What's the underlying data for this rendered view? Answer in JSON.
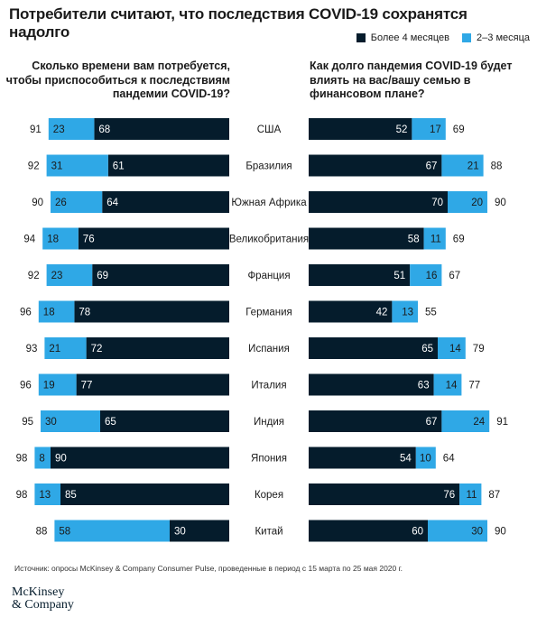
{
  "title": "Потребители считают, что последствия COVID-19 сохранятся надолго",
  "legend": [
    {
      "label": "Более 4 месяцев",
      "color": "#051c2c"
    },
    {
      "label": "2–3 месяца",
      "color": "#2fa8e6"
    }
  ],
  "questions": {
    "left": "Сколько времени вам потребуется, чтобы приспособиться к последствиям пандемии COVID-19?",
    "right": "Как долго пандемия COVID-19 будет влиять на вас/вашу семью в финансовом плане?"
  },
  "source": "Источник: опросы McKinsey & Company Consumer Pulse, проведенные в период с 15 марта по 25 мая 2020 г.",
  "logo": [
    "McKinsey",
    "& Company"
  ],
  "chart_data": [
    {
      "type": "bar",
      "stacked": true,
      "orientation": "horizontal",
      "side": "left",
      "categories": [
        "США",
        "Бразилия",
        "Южная Африка",
        "Великобритания",
        "Франция",
        "Германия",
        "Испания",
        "Италия",
        "Индия",
        "Япония",
        "Корея",
        "Китай"
      ],
      "series": [
        {
          "name": "Более 4 месяцев",
          "values": [
            68,
            61,
            64,
            76,
            69,
            78,
            72,
            77,
            65,
            90,
            85,
            30
          ]
        },
        {
          "name": "2–3 месяца",
          "values": [
            23,
            31,
            26,
            18,
            23,
            18,
            21,
            19,
            30,
            8,
            13,
            58
          ]
        }
      ],
      "totals": [
        91,
        92,
        90,
        94,
        92,
        96,
        93,
        96,
        95,
        98,
        98,
        88
      ]
    },
    {
      "type": "bar",
      "stacked": true,
      "orientation": "horizontal",
      "side": "right",
      "categories": [
        "США",
        "Бразилия",
        "Южная Африка",
        "Великобритания",
        "Франция",
        "Германия",
        "Испания",
        "Италия",
        "Индия",
        "Япония",
        "Корея",
        "Китай"
      ],
      "series": [
        {
          "name": "Более 4 месяцев",
          "values": [
            52,
            67,
            70,
            58,
            51,
            42,
            65,
            63,
            67,
            54,
            76,
            60
          ]
        },
        {
          "name": "2–3 месяца",
          "values": [
            17,
            21,
            20,
            11,
            16,
            13,
            14,
            14,
            24,
            10,
            11,
            30
          ]
        }
      ],
      "totals": [
        69,
        88,
        90,
        69,
        67,
        55,
        79,
        77,
        91,
        64,
        87,
        90
      ]
    }
  ]
}
